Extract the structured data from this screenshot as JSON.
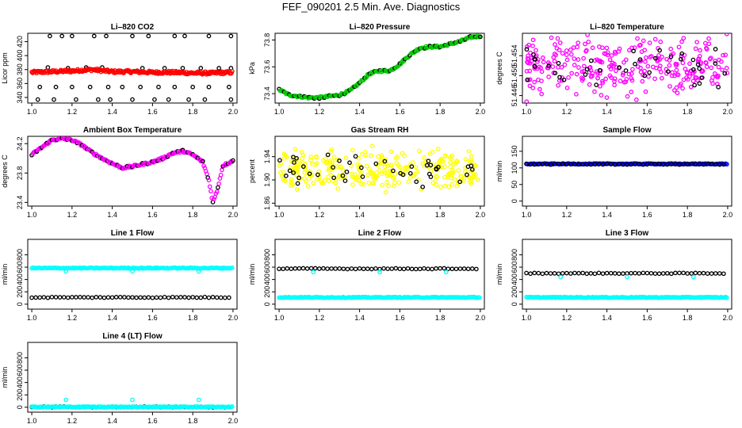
{
  "page_title": "FEF_090201  2.5 Min. Ave. Diagnostics",
  "chart_data": [
    {
      "id": "p1",
      "type": "scatter",
      "title": "Li–820 CO2",
      "ylabel": "Licor ppm",
      "ylim": [
        332,
        432
      ],
      "yticks": [
        340,
        360,
        380,
        400,
        420
      ],
      "xlim": [
        0.98,
        2.02
      ],
      "xticks": [
        "1.0",
        "1.2",
        "1.4",
        "1.6",
        "1.8",
        "2.0"
      ],
      "series": [
        {
          "name": "black",
          "color": "#000000",
          "style": "points",
          "values": [
            [
              1.09,
              428
            ],
            [
              1.15,
              428
            ],
            [
              1.2,
              428
            ],
            [
              1.31,
              428
            ],
            [
              1.37,
              428
            ],
            [
              1.5,
              428
            ],
            [
              1.58,
              428
            ],
            [
              1.71,
              428
            ],
            [
              1.76,
              428
            ],
            [
              1.88,
              428
            ],
            [
              1.99,
              428
            ],
            [
              1.04,
              355
            ],
            [
              1.12,
              355
            ],
            [
              1.2,
              355
            ],
            [
              1.29,
              355
            ],
            [
              1.38,
              355
            ],
            [
              1.45,
              355
            ],
            [
              1.54,
              355
            ],
            [
              1.63,
              355
            ],
            [
              1.71,
              355
            ],
            [
              1.8,
              355
            ],
            [
              1.88,
              355
            ],
            [
              1.98,
              355
            ],
            [
              1.03,
              337
            ],
            [
              1.11,
              337
            ],
            [
              1.22,
              337
            ],
            [
              1.33,
              337
            ],
            [
              1.39,
              337
            ],
            [
              1.5,
              337
            ],
            [
              1.61,
              337
            ],
            [
              1.68,
              337
            ],
            [
              1.78,
              337
            ],
            [
              1.86,
              337
            ],
            [
              1.99,
              337
            ],
            [
              1.08,
              383
            ],
            [
              1.18,
              382
            ],
            [
              1.27,
              383
            ],
            [
              1.35,
              383
            ],
            [
              1.55,
              382
            ],
            [
              1.66,
              382
            ],
            [
              1.75,
              382
            ],
            [
              1.84,
              382
            ],
            [
              1.93,
              382
            ],
            [
              1.99,
              382
            ]
          ]
        },
        {
          "name": "red",
          "color": "#ff0000",
          "style": "band",
          "x": [
            1.0,
            1.1,
            1.2,
            1.3,
            1.4,
            1.5,
            1.6,
            1.7,
            1.8,
            1.9,
            2.0
          ],
          "y": [
            376,
            377,
            378,
            380,
            377,
            377,
            376,
            376,
            375,
            375,
            376
          ],
          "spread": 4
        }
      ]
    },
    {
      "id": "p2",
      "type": "scatter",
      "title": "Li–820 Pressure",
      "ylabel": "kPa",
      "ylim": [
        73.33,
        73.85
      ],
      "yticks": [
        73.4,
        73.6,
        73.8
      ],
      "xlim": [
        0.98,
        2.02
      ],
      "xticks": [
        "1.0",
        "1.2",
        "1.4",
        "1.6",
        "1.8",
        "2.0"
      ],
      "series": [
        {
          "name": "green",
          "color": "#00cc00",
          "style": "line",
          "x": [
            1.0,
            1.05,
            1.1,
            1.15,
            1.2,
            1.25,
            1.3,
            1.35,
            1.4,
            1.45,
            1.5,
            1.55,
            1.6,
            1.65,
            1.7,
            1.75,
            1.8,
            1.85,
            1.9,
            1.95,
            2.0
          ],
          "y": [
            73.43,
            73.39,
            73.38,
            73.37,
            73.37,
            73.38,
            73.39,
            73.42,
            73.48,
            73.55,
            73.57,
            73.57,
            73.62,
            73.69,
            73.74,
            73.75,
            73.75,
            73.77,
            73.79,
            73.82,
            73.83
          ]
        }
      ]
    },
    {
      "id": "p3",
      "type": "scatter",
      "title": "Li–820 Temperature",
      "ylabel": "degrees C",
      "ylim": [
        51.4445,
        51.4585
      ],
      "yticks": [
        "51.446",
        "51.450",
        "51.454"
      ],
      "xlim": [
        0.98,
        2.02
      ],
      "xticks": [
        "1.0",
        "1.2",
        "1.4",
        "1.6",
        "1.8",
        "2.0"
      ],
      "series": [
        {
          "name": "magenta",
          "color": "#ff00ff",
          "style": "cloud",
          "center": 51.452,
          "spread": 0.0045,
          "n": 300
        },
        {
          "name": "black",
          "color": "#000000",
          "style": "cloud",
          "center": 51.452,
          "spread": 0.0035,
          "n": 40
        }
      ]
    },
    {
      "id": "p4",
      "type": "scatter",
      "title": "Ambient Box Temperature",
      "ylabel": "degrees C",
      "ylim": [
        23.35,
        24.3
      ],
      "yticks": [
        23.4,
        23.8,
        24.2
      ],
      "xlim": [
        0.98,
        2.02
      ],
      "xticks": [
        "1.0",
        "1.2",
        "1.4",
        "1.6",
        "1.8",
        "2.0"
      ],
      "series": [
        {
          "name": "magenta",
          "color": "#ff00ff",
          "style": "line",
          "x": [
            1.0,
            1.05,
            1.1,
            1.15,
            1.2,
            1.25,
            1.3,
            1.35,
            1.4,
            1.45,
            1.5,
            1.55,
            1.6,
            1.65,
            1.7,
            1.75,
            1.8,
            1.85,
            1.88,
            1.9,
            1.92,
            1.95,
            2.0
          ],
          "y": [
            24.05,
            24.15,
            24.25,
            24.27,
            24.25,
            24.18,
            24.08,
            24.0,
            23.93,
            23.87,
            23.89,
            23.92,
            23.95,
            24.0,
            24.07,
            24.1,
            24.05,
            23.95,
            23.7,
            23.4,
            23.55,
            23.9,
            23.97
          ]
        }
      ]
    },
    {
      "id": "p5",
      "type": "scatter",
      "title": "Gas Stream RH",
      "ylabel": "percent",
      "ylim": [
        1.855,
        1.975
      ],
      "yticks": [
        "1.86",
        "1.90",
        "1.94"
      ],
      "xlim": [
        0.98,
        2.02
      ],
      "xticks": [
        "1.0",
        "1.2",
        "1.4",
        "1.6",
        "1.8",
        "2.0"
      ],
      "series": [
        {
          "name": "yellow",
          "color": "#ffff00",
          "style": "cloud",
          "center": 1.915,
          "spread": 0.028,
          "n": 300
        },
        {
          "name": "black",
          "color": "#000000",
          "style": "cloud",
          "center": 1.915,
          "spread": 0.022,
          "n": 45
        }
      ]
    },
    {
      "id": "p6",
      "type": "scatter",
      "title": "Sample Flow",
      "ylabel": "ml/min",
      "ylim": [
        -15,
        195
      ],
      "yticks": [
        0,
        50,
        100,
        150
      ],
      "xlim": [
        0.98,
        2.02
      ],
      "xticks": [
        "1.0",
        "1.2",
        "1.4",
        "1.6",
        "1.8",
        "2.0"
      ],
      "series": [
        {
          "name": "blue",
          "color": "#0000ff",
          "style": "flat",
          "value": 112
        },
        {
          "name": "black",
          "color": "#000000",
          "style": "flat",
          "value": 111
        }
      ]
    },
    {
      "id": "p7",
      "type": "scatter",
      "title": "Line 1 Flow",
      "ylabel": "ml/min",
      "ylim": [
        -80,
        1050
      ],
      "yticks": [
        0,
        200,
        400,
        600,
        800
      ],
      "xlim": [
        0.98,
        2.02
      ],
      "xticks": [
        "1.0",
        "1.2",
        "1.4",
        "1.6",
        "1.8",
        "2.0"
      ],
      "series": [
        {
          "name": "cyan",
          "color": "#00ffff",
          "style": "flat",
          "value": 585,
          "dips": [
            1.17,
            1.5,
            1.83
          ],
          "dip_value": 530
        },
        {
          "name": "black",
          "color": "#000000",
          "style": "flat",
          "value": 110
        }
      ]
    },
    {
      "id": "p8",
      "type": "scatter",
      "title": "Line 2 Flow",
      "ylabel": "ml/min",
      "ylim": [
        -80,
        1050
      ],
      "yticks": [
        0,
        200,
        400,
        600,
        800
      ],
      "xlim": [
        0.98,
        2.02
      ],
      "xticks": [
        "1.0",
        "1.2",
        "1.4",
        "1.6",
        "1.8",
        "2.0"
      ],
      "series": [
        {
          "name": "cyan",
          "color": "#00ffff",
          "style": "flat",
          "value": 110
        },
        {
          "name": "black",
          "color": "#000000",
          "style": "flat",
          "value": 575,
          "dips": [
            1.17,
            1.5,
            1.83
          ],
          "dip_value": 520,
          "dip_color": "#00ffff"
        }
      ]
    },
    {
      "id": "p9",
      "type": "scatter",
      "title": "Line 3 Flow",
      "ylabel": "ml/min",
      "ylim": [
        -80,
        1050
      ],
      "yticks": [
        0,
        200,
        400,
        600,
        800
      ],
      "xlim": [
        0.98,
        2.02
      ],
      "xticks": [
        "1.0",
        "1.2",
        "1.4",
        "1.6",
        "1.8",
        "2.0"
      ],
      "series": [
        {
          "name": "cyan",
          "color": "#00ffff",
          "style": "flat",
          "value": 110
        },
        {
          "name": "black",
          "color": "#000000",
          "style": "flat",
          "value": 500,
          "dips": [
            1.17,
            1.5,
            1.83
          ],
          "dip_value": 440,
          "dip_color": "#00ffff"
        }
      ]
    },
    {
      "id": "p10",
      "type": "scatter",
      "title": "Line 4 (LT) Flow",
      "ylabel": "ml/min",
      "ylim": [
        -80,
        1050
      ],
      "yticks": [
        0,
        200,
        400,
        600,
        800
      ],
      "xlim": [
        0.98,
        2.02
      ],
      "xticks": [
        "1.0",
        "1.2",
        "1.4",
        "1.6",
        "1.8",
        "2.0"
      ],
      "series": [
        {
          "name": "black",
          "color": "#000000",
          "style": "flat",
          "value": 5
        },
        {
          "name": "cyan",
          "color": "#00ffff",
          "style": "flat",
          "value": 5,
          "dips": [
            1.17,
            1.5,
            1.83
          ],
          "dip_value": 120,
          "dip_up": true
        }
      ]
    }
  ]
}
